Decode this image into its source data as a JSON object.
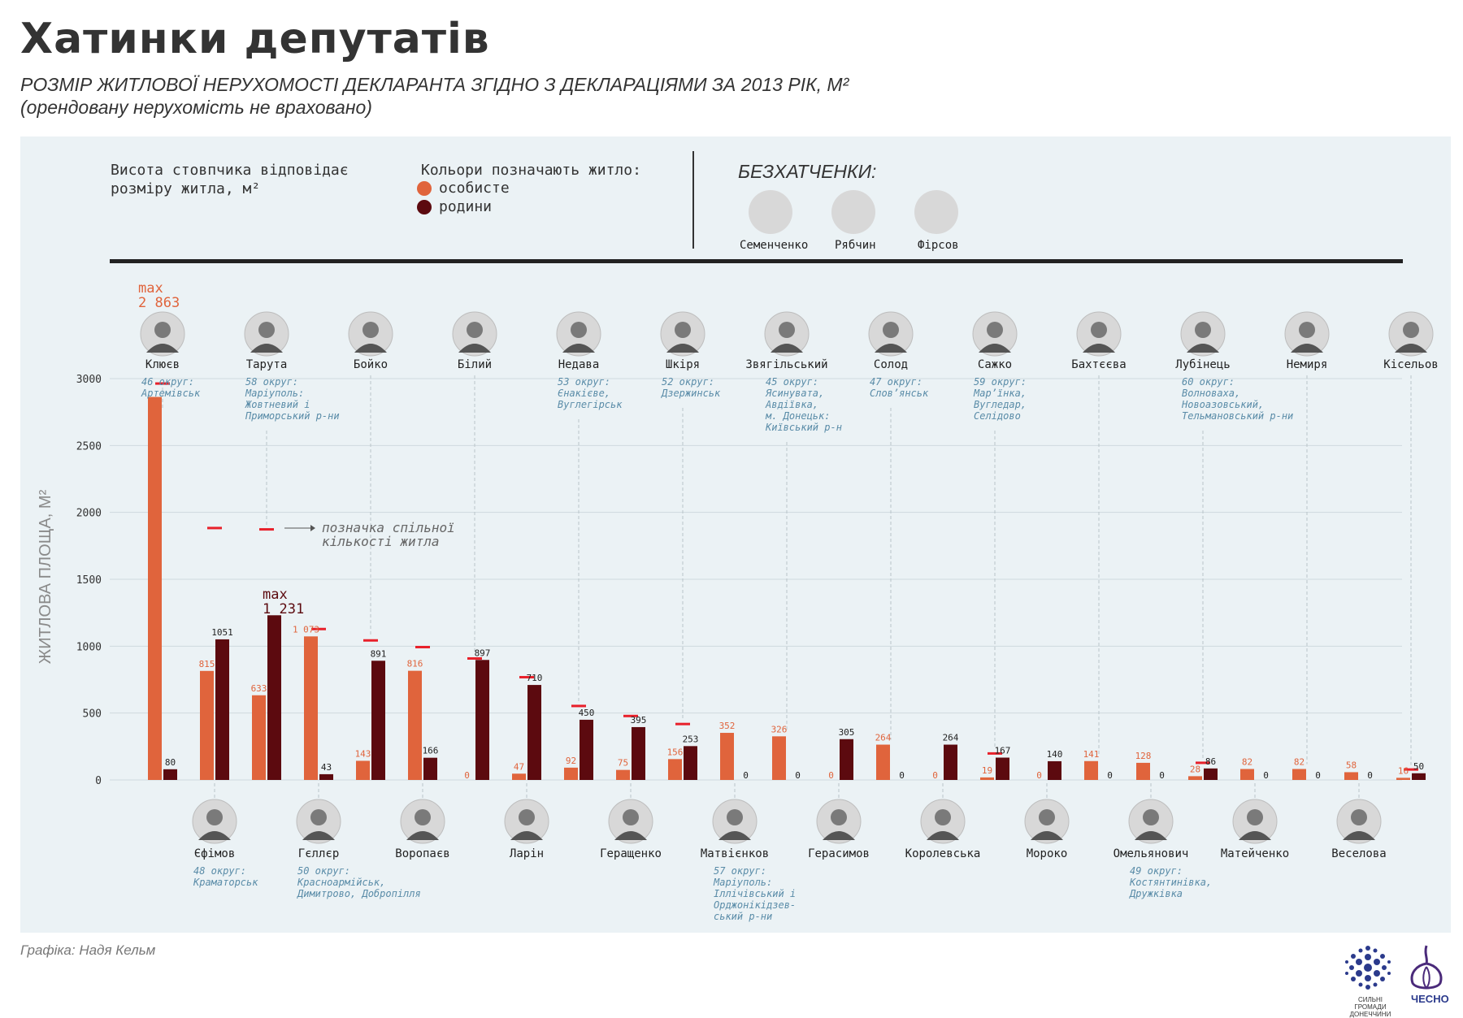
{
  "title": "Хатинки депутатів",
  "subtitle_line1": "РОЗМІР ЖИТЛОВОЇ НЕРУХОМОСТІ ДЕКЛАРАНТА ЗГІДНО З ДЕКЛАРАЦІЯМИ ЗА 2013 РІК, М²",
  "subtitle_line2": "(орендовану нерухомість не враховано)",
  "legend": {
    "height_line1": "Висота стовпчика відповідає",
    "height_line2": "розміру житла, м²",
    "colors_title": "Кольори позначають житло:",
    "personal": "особисте",
    "family": "родини",
    "personal_color": "#e0643c",
    "family_color": "#5c0a0f",
    "joint_color": "#e8202a"
  },
  "homeless": {
    "title": "БЕЗХАТЧЕНКИ:",
    "people": [
      "Семенченко",
      "Рябчин",
      "Фірсов"
    ]
  },
  "annotations": {
    "max_personal_label": "max",
    "max_personal_value": "2 863",
    "max_family_label": "max",
    "max_family_value": "1 231",
    "joint_note_line1": "позначка спільної",
    "joint_note_line2": "кількості житла"
  },
  "credit": "Графіка: Надя Кельм",
  "logos": {
    "left_caption": "СИЛЬНІ ГРОМАДИ ДОНЕЧЧИНИ",
    "right_caption": "ЧЕСНО"
  },
  "chart_data": {
    "type": "bar",
    "ylabel": "ЖИТЛОВА ПЛОЩА, М²",
    "ylim": [
      0,
      3000
    ],
    "yticks": [
      0,
      500,
      1000,
      1500,
      2000,
      2500,
      3000
    ],
    "grid": true,
    "series_names": [
      "особисте",
      "родини"
    ],
    "people": [
      {
        "name": "Клюєв",
        "personal": 2863,
        "family": 80,
        "joint": 2960,
        "personal_label": "",
        "family_label": "80",
        "row": "top",
        "district": [
          "46 округ:",
          "Артемівськ"
        ]
      },
      {
        "name": "Єфімов",
        "personal": 815,
        "family": 1051,
        "joint": 1880,
        "personal_label": "815",
        "family_label": "1051",
        "row": "bottom",
        "district": [
          "48 округ:",
          "Краматорськ"
        ]
      },
      {
        "name": "Тарута",
        "personal": 633,
        "family": 1231,
        "joint": 1870,
        "personal_label": "633",
        "family_label": "",
        "row": "top",
        "district": [
          "58 округ:",
          "Маріуполь:",
          "Жовтневий і",
          "Приморський р-ни"
        ]
      },
      {
        "name": "Гєллєр",
        "personal": 1073,
        "family": 43,
        "joint": 1125,
        "personal_label": "1 073",
        "family_label": "43",
        "row": "bottom",
        "district": [
          "50 округ:",
          "Красноармійськ,",
          "Димитрово, Добропілля"
        ]
      },
      {
        "name": "Бойко",
        "personal": 143,
        "family": 891,
        "joint": 1040,
        "personal_label": "143",
        "family_label": "891",
        "row": "top",
        "district": []
      },
      {
        "name": "Воропаєв",
        "personal": 816,
        "family": 166,
        "joint": 990,
        "personal_label": "816",
        "family_label": "166",
        "row": "bottom",
        "district": []
      },
      {
        "name": "Білий",
        "personal": 0,
        "family": 897,
        "joint": 905,
        "personal_label": "0",
        "family_label": "897",
        "row": "top",
        "district": []
      },
      {
        "name": "Ларін",
        "personal": 47,
        "family": 710,
        "joint": 765,
        "personal_label": "47",
        "family_label": "710",
        "row": "bottom",
        "district": []
      },
      {
        "name": "Недава",
        "personal": 92,
        "family": 450,
        "joint": 550,
        "personal_label": "92",
        "family_label": "450",
        "row": "top",
        "district": [
          "53 округ:",
          "Єнакієве,",
          "Вуглегірськ"
        ]
      },
      {
        "name": "Геращенко",
        "personal": 75,
        "family": 395,
        "joint": 475,
        "personal_label": "75",
        "family_label": "395",
        "row": "bottom",
        "district": []
      },
      {
        "name": "Шкіря",
        "personal": 156,
        "family": 253,
        "joint": 415,
        "personal_label": "156",
        "family_label": "253",
        "row": "top",
        "district": [
          "52 округ:",
          "Дзержинськ"
        ]
      },
      {
        "name": "Матвієнков",
        "personal": 352,
        "family": 0,
        "joint": null,
        "personal_label": "352",
        "family_label": "0",
        "row": "bottom",
        "district": [
          "57 округ:",
          "Маріуполь:",
          "Іллічівський і",
          "Орджонікідзев-",
          "ський р-ни"
        ]
      },
      {
        "name": "Звягільський",
        "personal": 326,
        "family": 0,
        "joint": null,
        "personal_label": "326",
        "family_label": "0",
        "row": "top",
        "district": [
          "45 округ:",
          "Ясинувата,",
          "Авдіївка,",
          "м. Донецьк:",
          "Київський р-н"
        ]
      },
      {
        "name": "Герасимов",
        "personal": 0,
        "family": 305,
        "joint": null,
        "personal_label": "0",
        "family_label": "305",
        "row": "bottom",
        "district": []
      },
      {
        "name": "Солод",
        "personal": 264,
        "family": 0,
        "joint": null,
        "personal_label": "264",
        "family_label": "0",
        "row": "top",
        "district": [
          "47 округ:",
          "Слов’янськ"
        ]
      },
      {
        "name": "Королевська",
        "personal": 0,
        "family": 264,
        "joint": null,
        "personal_label": "0",
        "family_label": "264",
        "row": "bottom",
        "district": []
      },
      {
        "name": "Сажко",
        "personal": 19,
        "family": 167,
        "joint": 195,
        "personal_label": "19",
        "family_label": "167",
        "row": "top",
        "district": [
          "59 округ:",
          "Мар’їнка,",
          "Вугледар,",
          "Селідово"
        ]
      },
      {
        "name": "Мороко",
        "personal": 0,
        "family": 140,
        "joint": null,
        "personal_label": "0",
        "family_label": "140",
        "row": "bottom",
        "district": []
      },
      {
        "name": "Бахтєєва",
        "personal": 141,
        "family": 0,
        "joint": null,
        "personal_label": "141",
        "family_label": "0",
        "row": "top",
        "district": []
      },
      {
        "name": "Омельянович",
        "personal": 128,
        "family": 0,
        "joint": null,
        "personal_label": "128",
        "family_label": "0",
        "row": "bottom",
        "district": [
          "49 округ:",
          "Костянтинівка,",
          "Дружківка"
        ]
      },
      {
        "name": "Лубінець",
        "personal": 28,
        "family": 86,
        "joint": 125,
        "personal_label": "28",
        "family_label": "86",
        "row": "top",
        "district": [
          "60 округ:",
          "Волноваха,",
          "Новоазовський,",
          "Тельмановський р-ни"
        ]
      },
      {
        "name": "Матейченко",
        "personal": 82,
        "family": 0,
        "joint": null,
        "personal_label": "82",
        "family_label": "0",
        "row": "bottom",
        "district": []
      },
      {
        "name": "Немиря",
        "personal": 82,
        "family": 0,
        "joint": null,
        "personal_label": "82",
        "family_label": "0",
        "row": "top",
        "district": []
      },
      {
        "name": "Веселова",
        "personal": 58,
        "family": 0,
        "joint": null,
        "personal_label": "58",
        "family_label": "0",
        "row": "bottom",
        "district": []
      },
      {
        "name": "Кісельов",
        "personal": 16,
        "family": 50,
        "joint": 75,
        "personal_label": "16",
        "family_label": "50",
        "row": "top",
        "district": []
      }
    ]
  }
}
